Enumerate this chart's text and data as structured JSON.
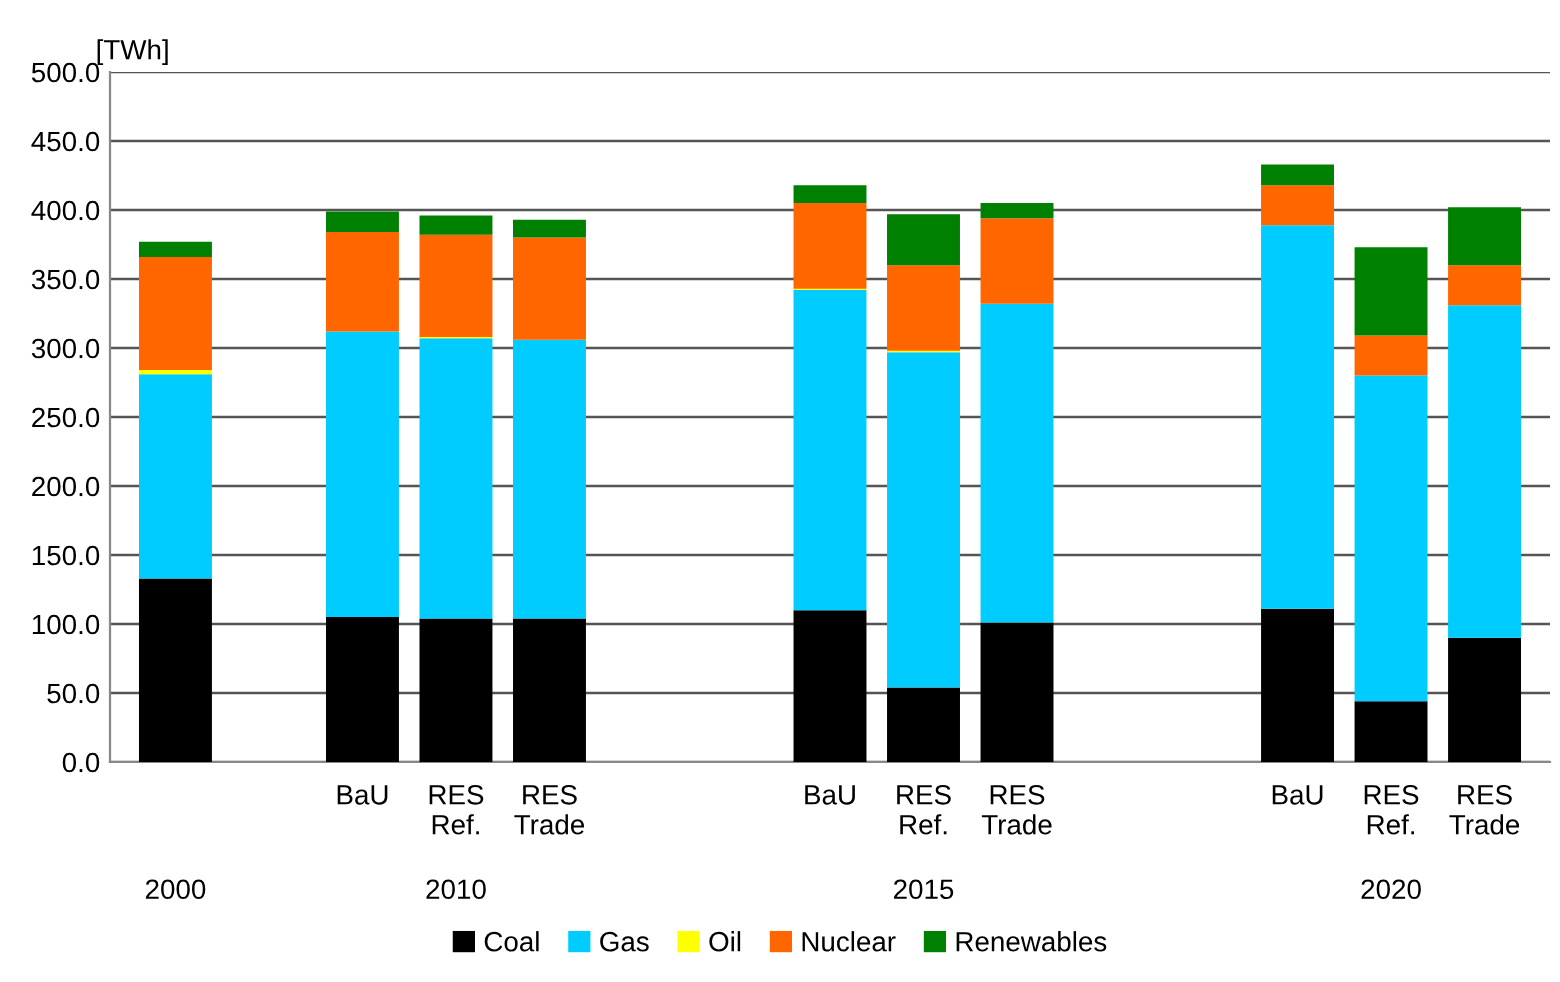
{
  "chart_data": {
    "type": "bar",
    "stacked": true,
    "ylabel": "[TWh]",
    "categories": [
      null,
      null,
      "BaU",
      "RES\nRef.",
      "RES\nTrade",
      null,
      null,
      "BaU",
      "RES\nRef.",
      "RES\nTrade",
      null,
      null,
      "BaU",
      "RES\nRef.",
      "RES\nTrade"
    ],
    "series": [
      {
        "name": "Coal",
        "color": "#000000",
        "values": [
          133,
          null,
          105,
          104,
          104,
          null,
          null,
          110,
          54,
          101,
          null,
          null,
          111,
          44,
          90
        ]
      },
      {
        "name": "Gas",
        "color": "#00ccff",
        "values": [
          148,
          null,
          207,
          203,
          202,
          null,
          null,
          232,
          243,
          231,
          null,
          null,
          278,
          236,
          241
        ]
      },
      {
        "name": "Oil",
        "color": "#ffff00",
        "values": [
          3,
          null,
          0,
          1,
          0,
          null,
          null,
          1,
          1,
          0,
          null,
          null,
          0,
          0,
          0
        ]
      },
      {
        "name": "Nuclear",
        "color": "#ff6600",
        "values": [
          82,
          null,
          72,
          74,
          74,
          null,
          null,
          62,
          62,
          62,
          null,
          null,
          29,
          29,
          29
        ]
      },
      {
        "name": "Renewables",
        "color": "#008000",
        "values": [
          11,
          null,
          15,
          14,
          13,
          null,
          null,
          13,
          37,
          11,
          null,
          null,
          15,
          64,
          42
        ]
      }
    ],
    "annotations": [
      "2000",
      "2010",
      "2015",
      "2020"
    ],
    "ylim": [
      0,
      500
    ],
    "yticks": [
      {
        "value": 0,
        "label": "0.0"
      },
      {
        "value": 50,
        "label": "50.0"
      },
      {
        "value": 100,
        "label": "100.0"
      },
      {
        "value": 150,
        "label": "150.0"
      },
      {
        "value": 200,
        "label": "200.0"
      },
      {
        "value": 250,
        "label": "250.0"
      },
      {
        "value": 300,
        "label": "300.0"
      },
      {
        "value": 350,
        "label": "350.0"
      },
      {
        "value": 400,
        "label": "400.0"
      },
      {
        "value": 450,
        "label": "450.0"
      },
      {
        "value": 500,
        "label": "500.0"
      }
    ],
    "grid": "y",
    "legend": "bottom"
  }
}
